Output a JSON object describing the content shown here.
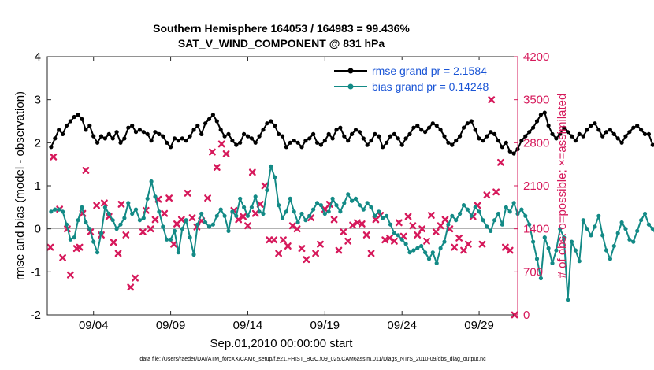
{
  "chart_data": {
    "type": "line",
    "title_line1": "Southern Hemisphere 164053 / 164983 = 99.436%",
    "title_line2": "SAT_V_WIND_COMPONENT @ 831 hPa",
    "xlabel": "Sep.01,2010 00:00:00 start",
    "ylabel": "rmse and bias (model - observation)",
    "ylabel_right": "# of obs: o=possible; ×=assimilated",
    "footer": "data file: /Users/raeder/DAI/ATM_forcXX/CAM6_setup/f.e21.FHIST_BGC.f09_025.CAM6assim.011/Diags_NTrS_2010-09/obs_diag_output.nc",
    "x_range": [
      1,
      31.5
    ],
    "ylim": [
      -2,
      4
    ],
    "ylim_right": [
      0,
      4200
    ],
    "x_ticks": [
      4,
      9,
      14,
      19,
      24,
      29
    ],
    "x_tick_labels": [
      "09/04",
      "09/09",
      "09/14",
      "09/19",
      "09/24",
      "09/29"
    ],
    "y_ticks": [
      -2,
      -1,
      0,
      1,
      2,
      3,
      4
    ],
    "y_tick_labels": [
      "-2",
      "-1",
      "0",
      "1",
      "2",
      "3",
      "4"
    ],
    "y_right_ticks": [
      0,
      700,
      1400,
      2100,
      2800,
      3500,
      4200
    ],
    "y_right_tick_labels": [
      "0",
      "700",
      "1400",
      "2100",
      "2800",
      "3500",
      "4200"
    ],
    "x_start": 1.25,
    "x_step": 0.25,
    "series": [
      {
        "name": "rmse grand pr = 2.1584",
        "color": "#000000",
        "values": [
          1.9,
          2.1,
          2.3,
          2.2,
          2.4,
          2.5,
          2.6,
          2.65,
          2.55,
          2.3,
          2.4,
          2.15,
          2.0,
          2.15,
          2.1,
          2.2,
          2.1,
          2.25,
          2.0,
          2.1,
          2.35,
          2.4,
          2.25,
          2.3,
          2.25,
          2.2,
          2.05,
          2.25,
          2.2,
          2.15,
          2.0,
          1.9,
          2.1,
          2.05,
          2.1,
          2.05,
          2.15,
          2.3,
          2.4,
          2.2,
          2.45,
          2.55,
          2.65,
          2.5,
          2.3,
          2.15,
          2.2,
          2.05,
          1.95,
          2.0,
          2.2,
          2.15,
          2.1,
          2.0,
          2.15,
          2.3,
          2.45,
          2.5,
          2.4,
          2.2,
          2.15,
          1.9,
          2.0,
          2.05,
          2.0,
          1.9,
          2.05,
          2.1,
          2.2,
          2.0,
          1.95,
          2.05,
          2.2,
          2.1,
          2.3,
          2.35,
          2.15,
          2.05,
          2.2,
          2.3,
          2.25,
          2.1,
          1.95,
          2.05,
          2.2,
          2.15,
          1.9,
          2.0,
          2.15,
          2.2,
          2.1,
          1.95,
          2.1,
          2.2,
          2.35,
          2.4,
          2.3,
          2.25,
          2.35,
          2.45,
          2.4,
          2.3,
          2.15,
          2.0,
          1.95,
          2.05,
          2.15,
          2.35,
          2.45,
          2.5,
          2.3,
          2.1,
          2.05,
          2.15,
          2.25,
          2.2,
          2.05,
          1.9,
          2.0,
          1.8,
          1.75,
          1.85,
          2.05,
          2.15,
          2.25,
          2.35,
          2.5,
          2.65,
          2.7,
          2.4,
          2.2,
          2.1,
          2.2,
          2.35,
          2.25,
          2.15,
          2.05,
          2.2,
          2.15,
          2.3,
          2.4,
          2.45,
          2.3,
          2.15,
          2.25,
          2.3,
          2.2,
          2.1,
          2.0,
          2.15,
          2.25,
          2.35,
          2.4,
          2.3,
          2.2,
          2.2,
          1.95,
          2.0,
          1.95,
          2.05,
          2.15,
          2.35,
          2.45,
          2.5,
          2.35,
          2.2,
          2.1,
          2.05,
          2.0,
          1.9,
          2.05,
          2.2,
          2.3,
          2.35,
          2.25,
          2.05,
          1.85,
          1.7,
          1.75,
          1.65,
          1.75,
          1.85,
          2.05,
          2.25,
          2.3,
          2.2,
          2.0,
          1.9,
          2.0,
          2.05,
          2.15,
          2.25,
          2.45,
          2.5,
          2.2,
          2.05,
          2.15,
          2.2,
          2.1,
          2.0,
          2.05,
          2.25,
          2.35,
          2.4,
          2.3,
          2.2,
          2.25,
          2.3,
          2.35,
          2.45,
          2.5,
          2.35,
          2.2,
          2.1,
          2.2,
          2.35,
          2.4,
          2.3,
          2.2,
          2.15,
          2.25,
          2.35,
          2.4,
          2.35,
          2.25,
          2.3,
          2.25
        ]
      },
      {
        "name": "bias grand pr = 0.14248",
        "color": "#138a86",
        "values": [
          0.4,
          0.45,
          0.45,
          0.4,
          0.1,
          -0.25,
          -0.2,
          0.2,
          0.5,
          0.15,
          0.0,
          -0.3,
          -0.55,
          -0.1,
          0.5,
          0.35,
          0.2,
          0.0,
          0.1,
          0.25,
          0.6,
          0.35,
          0.45,
          0.2,
          0.25,
          0.7,
          1.1,
          0.75,
          0.4,
          0.05,
          -0.25,
          -0.25,
          -0.05,
          -0.55,
          0.0,
          0.2,
          -0.2,
          -0.6,
          0.1,
          0.35,
          0.15,
          0.05,
          0.1,
          0.3,
          0.45,
          0.3,
          -0.05,
          0.4,
          0.3,
          0.7,
          0.5,
          0.3,
          0.5,
          0.75,
          0.4,
          0.35,
          0.9,
          1.45,
          1.2,
          0.55,
          0.25,
          0.4,
          0.7,
          0.4,
          0.15,
          0.35,
          0.2,
          0.3,
          0.45,
          0.6,
          0.55,
          0.35,
          0.4,
          0.7,
          0.55,
          0.4,
          0.6,
          0.8,
          0.65,
          0.7,
          0.55,
          0.45,
          0.6,
          0.5,
          0.3,
          0.4,
          0.25,
          0.3,
          0.1,
          -0.1,
          -0.15,
          -0.25,
          -0.35,
          -0.55,
          -0.5,
          -0.45,
          -0.4,
          -0.55,
          -0.7,
          -0.55,
          -0.8,
          -0.45,
          -0.3,
          0.1,
          0.3,
          0.2,
          0.35,
          0.55,
          0.45,
          0.3,
          0.5,
          0.4,
          0.2,
          0.05,
          -0.05,
          0.2,
          0.35,
          0.1,
          0.5,
          0.4,
          0.6,
          0.35,
          0.45,
          0.3,
          0.1,
          -0.3,
          -0.7,
          -1.15,
          -0.2,
          -0.45,
          -0.8,
          -0.5,
          0.0,
          -0.2,
          -1.65,
          -0.3,
          -0.5,
          -0.75,
          0.2,
          0.0,
          -0.15,
          0.05,
          0.3,
          -0.15,
          -0.5,
          -0.7,
          -0.4,
          -0.1,
          0.15,
          0.0,
          -0.25,
          -0.3,
          -0.05,
          0.2,
          0.35,
          0.1,
          0.0,
          -0.15,
          0.1,
          0.25,
          0.3,
          0.5,
          0.35,
          0.3,
          0.1,
          -0.05,
          0.0,
          -0.1,
          -0.35,
          -0.55,
          -0.2,
          0.0,
          0.15,
          0.9,
          0.3,
          0.1,
          -0.05,
          -0.25,
          -0.2,
          -0.4,
          -0.5,
          -0.3,
          0.1,
          0.3,
          0.45,
          0.5,
          0.3,
          0.1,
          0.0,
          0.35,
          0.5,
          0.75,
          0.55,
          0.4,
          0.45,
          0.3,
          0.2,
          -0.05,
          0.05,
          0.2,
          0.35,
          0.3,
          -0.35,
          -0.6,
          -0.75
        ]
      }
    ],
    "assimilated_obs": {
      "name": "# assimilated",
      "color": "#d6195b",
      "x": [
        1.2,
        1.4,
        1.8,
        2.0,
        2.3,
        2.5,
        2.9,
        3.1,
        3.3,
        3.5,
        3.8,
        4.2,
        4.5,
        4.7,
        5.0,
        5.3,
        5.6,
        5.8,
        6.1,
        6.4,
        6.7,
        7.2,
        7.4,
        7.7,
        8.0,
        8.2,
        8.6,
        8.9,
        9.2,
        9.4,
        9.7,
        10.1,
        10.4,
        10.7,
        11.0,
        11.4,
        11.7,
        12.0,
        12.3,
        12.6,
        13.1,
        13.4,
        13.7,
        14.0,
        14.3,
        14.5,
        14.8,
        15.1,
        15.4,
        15.7,
        16.0,
        16.3,
        16.6,
        16.9,
        17.2,
        17.5,
        17.8,
        18.1,
        18.4,
        18.7,
        19.0,
        19.3,
        19.6,
        19.9,
        20.2,
        20.5,
        20.8,
        21.1,
        21.4,
        21.7,
        22.0,
        22.3,
        22.6,
        22.9,
        23.2,
        23.5,
        23.8,
        24.1,
        24.4,
        24.7,
        25.0,
        25.3,
        25.6,
        25.9,
        26.2,
        26.5,
        26.8,
        27.1,
        27.4,
        27.7,
        28.0,
        28.3,
        28.6,
        28.9,
        29.2,
        29.5,
        29.8,
        30.1,
        30.4,
        30.7,
        31.0,
        31.3
      ],
      "values": [
        1100,
        2570,
        1720,
        930,
        1400,
        650,
        1080,
        1100,
        1650,
        2350,
        1350,
        1780,
        1300,
        1820,
        1600,
        1180,
        1000,
        1800,
        1300,
        450,
        600,
        1350,
        1700,
        1400,
        1550,
        1880,
        1650,
        1900,
        1150,
        1480,
        1550,
        1980,
        1580,
        1430,
        1530,
        1900,
        2650,
        2400,
        2780,
        2620,
        1700,
        1550,
        1600,
        1450,
        2320,
        1650,
        1800,
        2100,
        1220,
        1220,
        1000,
        1220,
        1120,
        1450,
        1400,
        1080,
        900,
        1580,
        1000,
        1150,
        1720,
        1800,
        1550,
        1050,
        1350,
        1200,
        1460,
        1500,
        1480,
        1300,
        1000,
        1550,
        1620,
        1220,
        1250,
        1200,
        1500,
        1280,
        1600,
        1450,
        1300,
        1400,
        1200,
        1620,
        1350,
        1450,
        1550,
        1400,
        1100,
        1250,
        1050,
        1150,
        1600,
        1780,
        1150,
        1950,
        3500,
        2000,
        2480,
        1100,
        1050,
        0
      ]
    },
    "legend": {
      "rmse_label": "rmse grand pr = 2.1584",
      "bias_label": "bias grand pr = 0.14248"
    }
  }
}
